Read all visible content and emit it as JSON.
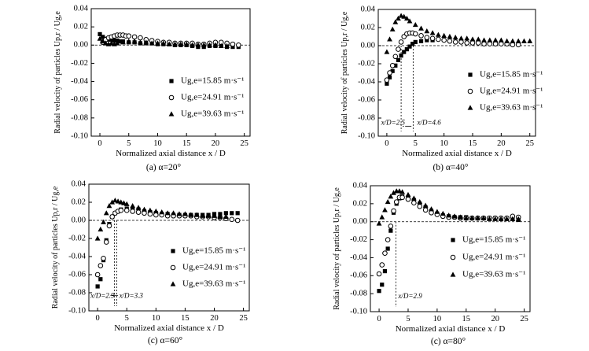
{
  "figure": {
    "panels": [
      {
        "caption": "(a) α=20°",
        "xlabel": "Normalized axial distance x / D",
        "ylabel": "Radial velocity of particles Up,r / Ug,e",
        "annotations": []
      },
      {
        "caption": "(b) α=40°",
        "xlabel": "Normalized axial distance x / D",
        "ylabel": "Radial velocity of particles Up,r / Ug,e",
        "annotations": [
          "x/D=2.5",
          "x/D=4.6"
        ]
      },
      {
        "caption": "(c) α=60°",
        "xlabel": "Normalized axial distance x / D",
        "ylabel": "Radial velocity of particles Up,r / Ug,e",
        "annotations": [
          "x/D=2.9",
          "x/D=3.3"
        ]
      },
      {
        "caption": "(c) α=80°",
        "xlabel": "Normalized axial distance x / D",
        "ylabel": "Radial velocity of particles Up,r / Ug,e",
        "annotations": [
          "x/D=2.9"
        ]
      }
    ],
    "legend": [
      {
        "marker": "square",
        "label": "Ug,e=15.85 m·s⁻¹"
      },
      {
        "marker": "circle",
        "label": "Ug,e=24.91 m·s⁻¹"
      },
      {
        "marker": "triangle",
        "label": "Ug,e=39.63 m·s⁻¹"
      }
    ]
  },
  "chart_data": [
    {
      "type": "scatter",
      "caption": "(a) α=20°",
      "xlabel": "Normalized axial distance x / D",
      "ylabel": "Radial velocity of particles Up,r / Ug,e",
      "xlim": [
        -1.5,
        26
      ],
      "ylim": [
        -0.1,
        0.04
      ],
      "xticks": [
        0,
        5,
        10,
        15,
        20,
        25
      ],
      "yticks": [
        -0.1,
        -0.08,
        -0.06,
        -0.04,
        -0.02,
        0.0,
        0.02,
        0.04
      ],
      "reference_line_y": 0.0,
      "series": [
        {
          "name": "Ug,e=15.85 m·s⁻¹",
          "marker": "square",
          "x": [
            0,
            0.5,
            1,
            1.5,
            2,
            2.5,
            3,
            3.5,
            4,
            5,
            6,
            7,
            8,
            9,
            10,
            11,
            12,
            13,
            14,
            15,
            16,
            17,
            18,
            19,
            20,
            21,
            22,
            23,
            24
          ],
          "y": [
            0.012,
            0.009,
            0.007,
            0.006,
            0.006,
            0.005,
            0.005,
            0.004,
            0.004,
            0.003,
            0.003,
            0.002,
            0.002,
            0.002,
            0.001,
            0.001,
            0.001,
            0.0,
            0.0,
            0.0,
            -0.001,
            -0.002,
            -0.002,
            -0.001,
            -0.001,
            -0.001,
            -0.002,
            -0.002,
            -0.002
          ]
        },
        {
          "name": "Ug,e=24.91 m·s⁻¹",
          "marker": "circle",
          "x": [
            0.5,
            1,
            1.5,
            2,
            2.5,
            3,
            3.5,
            4,
            4.5,
            5,
            6,
            7,
            8,
            9,
            10,
            11,
            12,
            13,
            14,
            15,
            16,
            17,
            18,
            19,
            20,
            21,
            22,
            23,
            24
          ],
          "y": [
            0.003,
            0.006,
            0.008,
            0.009,
            0.01,
            0.011,
            0.011,
            0.011,
            0.01,
            0.01,
            0.009,
            0.008,
            0.006,
            0.005,
            0.004,
            0.003,
            0.003,
            0.002,
            0.002,
            0.002,
            0.002,
            0.001,
            0.001,
            0.002,
            0.003,
            0.003,
            0.002,
            0.001,
            0.0
          ]
        },
        {
          "name": "Ug,e=39.63 m·s⁻¹",
          "marker": "triangle",
          "x": [
            0,
            0.5,
            1,
            1.5,
            2,
            2.5,
            3,
            4,
            5,
            6,
            7,
            8,
            9,
            10,
            11,
            12,
            13,
            14,
            15,
            16,
            17,
            18,
            19,
            20,
            21,
            22
          ],
          "y": [
            0.007,
            0.004,
            0.002,
            0.001,
            0.002,
            0.001,
            0.002,
            0.003,
            0.004,
            0.004,
            0.003,
            0.003,
            0.002,
            0.002,
            0.002,
            0.001,
            0.001,
            0.001,
            0.001,
            0.0,
            0.0,
            0.0,
            0.0,
            0.0,
            -0.001,
            -0.001
          ]
        }
      ]
    },
    {
      "type": "scatter",
      "caption": "(b) α=40°",
      "xlabel": "Normalized axial distance x / D",
      "ylabel": "Radial velocity of particles Up,r / Ug,e",
      "xlim": [
        -1.5,
        26
      ],
      "ylim": [
        -0.1,
        0.04
      ],
      "xticks": [
        0,
        5,
        10,
        15,
        20,
        25
      ],
      "yticks": [
        -0.1,
        -0.08,
        -0.06,
        -0.04,
        -0.02,
        0.0,
        0.02,
        0.04
      ],
      "reference_line_y": 0.0,
      "markers_x": [
        2.5,
        4.6
      ],
      "series": [
        {
          "name": "Ug,e=15.85 m·s⁻¹",
          "marker": "square",
          "x": [
            0,
            0.5,
            1,
            1.5,
            2,
            2.5,
            3,
            3.5,
            4,
            4.5,
            5,
            6,
            7,
            8
          ],
          "y": [
            -0.042,
            -0.035,
            -0.028,
            -0.022,
            -0.016,
            -0.011,
            -0.007,
            -0.004,
            -0.001,
            0.002,
            0.004,
            0.005,
            0.006,
            0.006
          ]
        },
        {
          "name": "Ug,e=24.91 m·s⁻¹",
          "marker": "circle",
          "x": [
            0,
            0.5,
            1,
            1.5,
            2,
            2.5,
            3,
            3.5,
            4,
            4.5,
            5,
            6,
            7,
            8,
            9,
            10,
            11,
            12,
            13,
            14,
            15,
            16,
            17,
            18,
            19,
            20,
            21,
            22,
            23
          ],
          "y": [
            -0.038,
            -0.03,
            -0.022,
            -0.012,
            -0.004,
            0.004,
            0.01,
            0.013,
            0.014,
            0.014,
            0.013,
            0.011,
            0.009,
            0.008,
            0.007,
            0.006,
            0.005,
            0.004,
            0.004,
            0.003,
            0.003,
            0.003,
            0.002,
            0.002,
            0.002,
            0.002,
            0.002,
            0.001,
            0.001
          ]
        },
        {
          "name": "Ug,e=39.63 m·s⁻¹",
          "marker": "triangle",
          "x": [
            0,
            0.5,
            1,
            1.5,
            2,
            2.5,
            3,
            3.5,
            4,
            5,
            6,
            7,
            8,
            9,
            10,
            11,
            12,
            13,
            14,
            15,
            16,
            17,
            18,
            19,
            20,
            21,
            22,
            23,
            24,
            25
          ],
          "y": [
            -0.007,
            0.007,
            0.018,
            0.026,
            0.03,
            0.033,
            0.032,
            0.03,
            0.027,
            0.023,
            0.019,
            0.016,
            0.014,
            0.012,
            0.011,
            0.01,
            0.009,
            0.008,
            0.008,
            0.007,
            0.007,
            0.006,
            0.006,
            0.006,
            0.006,
            0.005,
            0.005,
            0.005,
            0.005,
            0.005
          ]
        }
      ]
    },
    {
      "type": "scatter",
      "caption": "(c) α=60°",
      "xlabel": "Normalized axial distance x / D",
      "ylabel": "Radial velocity of particles Up,r / Ug,e",
      "xlim": [
        -1.5,
        26
      ],
      "ylim": [
        -0.1,
        0.04
      ],
      "xticks": [
        0,
        5,
        10,
        15,
        20,
        25
      ],
      "yticks": [
        -0.1,
        -0.08,
        -0.06,
        -0.04,
        -0.02,
        0.0,
        0.02,
        0.04
      ],
      "reference_line_y": 0.0,
      "markers_x": [
        2.9,
        3.3
      ],
      "series": [
        {
          "name": "Ug,e=15.85 m·s⁻¹",
          "marker": "square",
          "x": [
            0,
            0.5,
            1,
            1.5,
            2,
            2.5,
            3,
            3.5,
            4,
            5,
            6,
            7,
            8,
            9,
            10,
            11,
            12,
            13,
            14,
            15,
            16,
            17,
            18,
            19,
            20,
            21,
            22,
            23,
            24
          ],
          "y": [
            -0.073,
            -0.065,
            -0.044,
            -0.022,
            -0.004,
            0.004,
            0.008,
            0.01,
            0.012,
            0.013,
            0.013,
            0.012,
            0.01,
            0.009,
            0.008,
            0.007,
            0.007,
            0.006,
            0.006,
            0.006,
            0.006,
            0.006,
            0.006,
            0.006,
            0.007,
            0.007,
            0.008,
            0.008,
            0.008
          ]
        },
        {
          "name": "Ug,e=24.91 m·s⁻¹",
          "marker": "circle",
          "x": [
            0,
            0.5,
            1,
            1.5,
            2,
            2.5,
            3,
            3.5,
            4,
            5,
            6,
            7,
            8,
            9,
            10,
            11,
            12,
            13,
            14,
            15,
            16,
            17,
            18,
            19,
            20,
            21,
            22,
            23,
            24
          ],
          "y": [
            -0.06,
            -0.05,
            -0.042,
            -0.024,
            -0.006,
            0.004,
            0.008,
            0.01,
            0.011,
            0.011,
            0.01,
            0.009,
            0.008,
            0.007,
            0.006,
            0.006,
            0.005,
            0.005,
            0.005,
            0.005,
            0.005,
            0.004,
            0.004,
            0.004,
            0.003,
            0.003,
            0.002,
            0.001,
            0.0
          ]
        },
        {
          "name": "Ug,e=39.63 m·s⁻¹",
          "marker": "triangle",
          "x": [
            0,
            0.5,
            1,
            1.5,
            2,
            2.5,
            3,
            3.5,
            4,
            4.5,
            5,
            6,
            7,
            8,
            9,
            10,
            11,
            12,
            13,
            14,
            15,
            16,
            17,
            18,
            19,
            20,
            21,
            22
          ],
          "y": [
            -0.02,
            -0.01,
            -0.002,
            0.008,
            0.016,
            0.02,
            0.022,
            0.021,
            0.02,
            0.019,
            0.018,
            0.016,
            0.014,
            0.012,
            0.011,
            0.01,
            0.009,
            0.008,
            0.008,
            0.007,
            0.007,
            0.006,
            0.006,
            0.005,
            0.005,
            0.005,
            0.004,
            0.004
          ]
        }
      ]
    },
    {
      "type": "scatter",
      "caption": "(c) α=80°",
      "xlabel": "Normalized axial distance x / D",
      "ylabel": "Radial velocity of particles Up,r / Ug,e",
      "xlim": [
        -1.5,
        26
      ],
      "ylim": [
        -0.1,
        0.04
      ],
      "xticks": [
        0,
        5,
        10,
        15,
        20,
        25
      ],
      "yticks": [
        -0.1,
        -0.08,
        -0.06,
        -0.04,
        -0.02,
        0.0,
        0.02,
        0.04
      ],
      "reference_line_y": 0.0,
      "markers_x": [
        2.9
      ],
      "series": [
        {
          "name": "Ug,e=15.85 m·s⁻¹",
          "marker": "square",
          "x": [
            0,
            0.5,
            1,
            1.5,
            2,
            2.5,
            3,
            3.5,
            4,
            5,
            6,
            7,
            8,
            9,
            10,
            11,
            12,
            13,
            14,
            15,
            16,
            17,
            18,
            19,
            20,
            21,
            22,
            23,
            24
          ],
          "y": [
            -0.077,
            -0.07,
            -0.055,
            -0.03,
            -0.01,
            0.01,
            0.02,
            0.026,
            0.028,
            0.027,
            0.024,
            0.02,
            0.016,
            0.012,
            0.009,
            0.007,
            0.006,
            0.005,
            0.005,
            0.005,
            0.004,
            0.004,
            0.004,
            0.004,
            0.004,
            0.003,
            0.003,
            0.003,
            0.002
          ]
        },
        {
          "name": "Ug,e=24.91 m·s⁻¹",
          "marker": "circle",
          "x": [
            0,
            0.5,
            1,
            1.5,
            2,
            2.5,
            3,
            3.5,
            4,
            5,
            6,
            7,
            8,
            9,
            10,
            11,
            12,
            13,
            14,
            15,
            16,
            17,
            18,
            19,
            20,
            21,
            22,
            23,
            24
          ],
          "y": [
            -0.058,
            -0.048,
            -0.035,
            -0.02,
            -0.005,
            0.012,
            0.022,
            0.027,
            0.027,
            0.025,
            0.021,
            0.017,
            0.013,
            0.01,
            0.008,
            0.006,
            0.005,
            0.005,
            0.004,
            0.004,
            0.004,
            0.004,
            0.004,
            0.004,
            0.004,
            0.004,
            0.004,
            0.006,
            0.005
          ]
        },
        {
          "name": "Ug,e=39.63 m·s⁻¹",
          "marker": "triangle",
          "x": [
            0,
            0.5,
            1,
            1.5,
            2,
            2.5,
            3,
            3.5,
            4,
            5,
            6,
            7,
            8,
            9,
            10,
            11,
            12,
            13,
            14,
            15,
            16,
            17,
            18,
            19,
            20,
            21,
            22,
            23,
            24
          ],
          "y": [
            -0.002,
            0.005,
            0.013,
            0.022,
            0.028,
            0.032,
            0.034,
            0.034,
            0.033,
            0.03,
            0.026,
            0.022,
            0.018,
            0.014,
            0.011,
            0.009,
            0.007,
            0.006,
            0.005,
            0.004,
            0.004,
            0.004,
            0.004,
            0.003,
            0.003,
            0.003,
            0.003,
            0.003,
            0.003
          ]
        }
      ]
    }
  ]
}
